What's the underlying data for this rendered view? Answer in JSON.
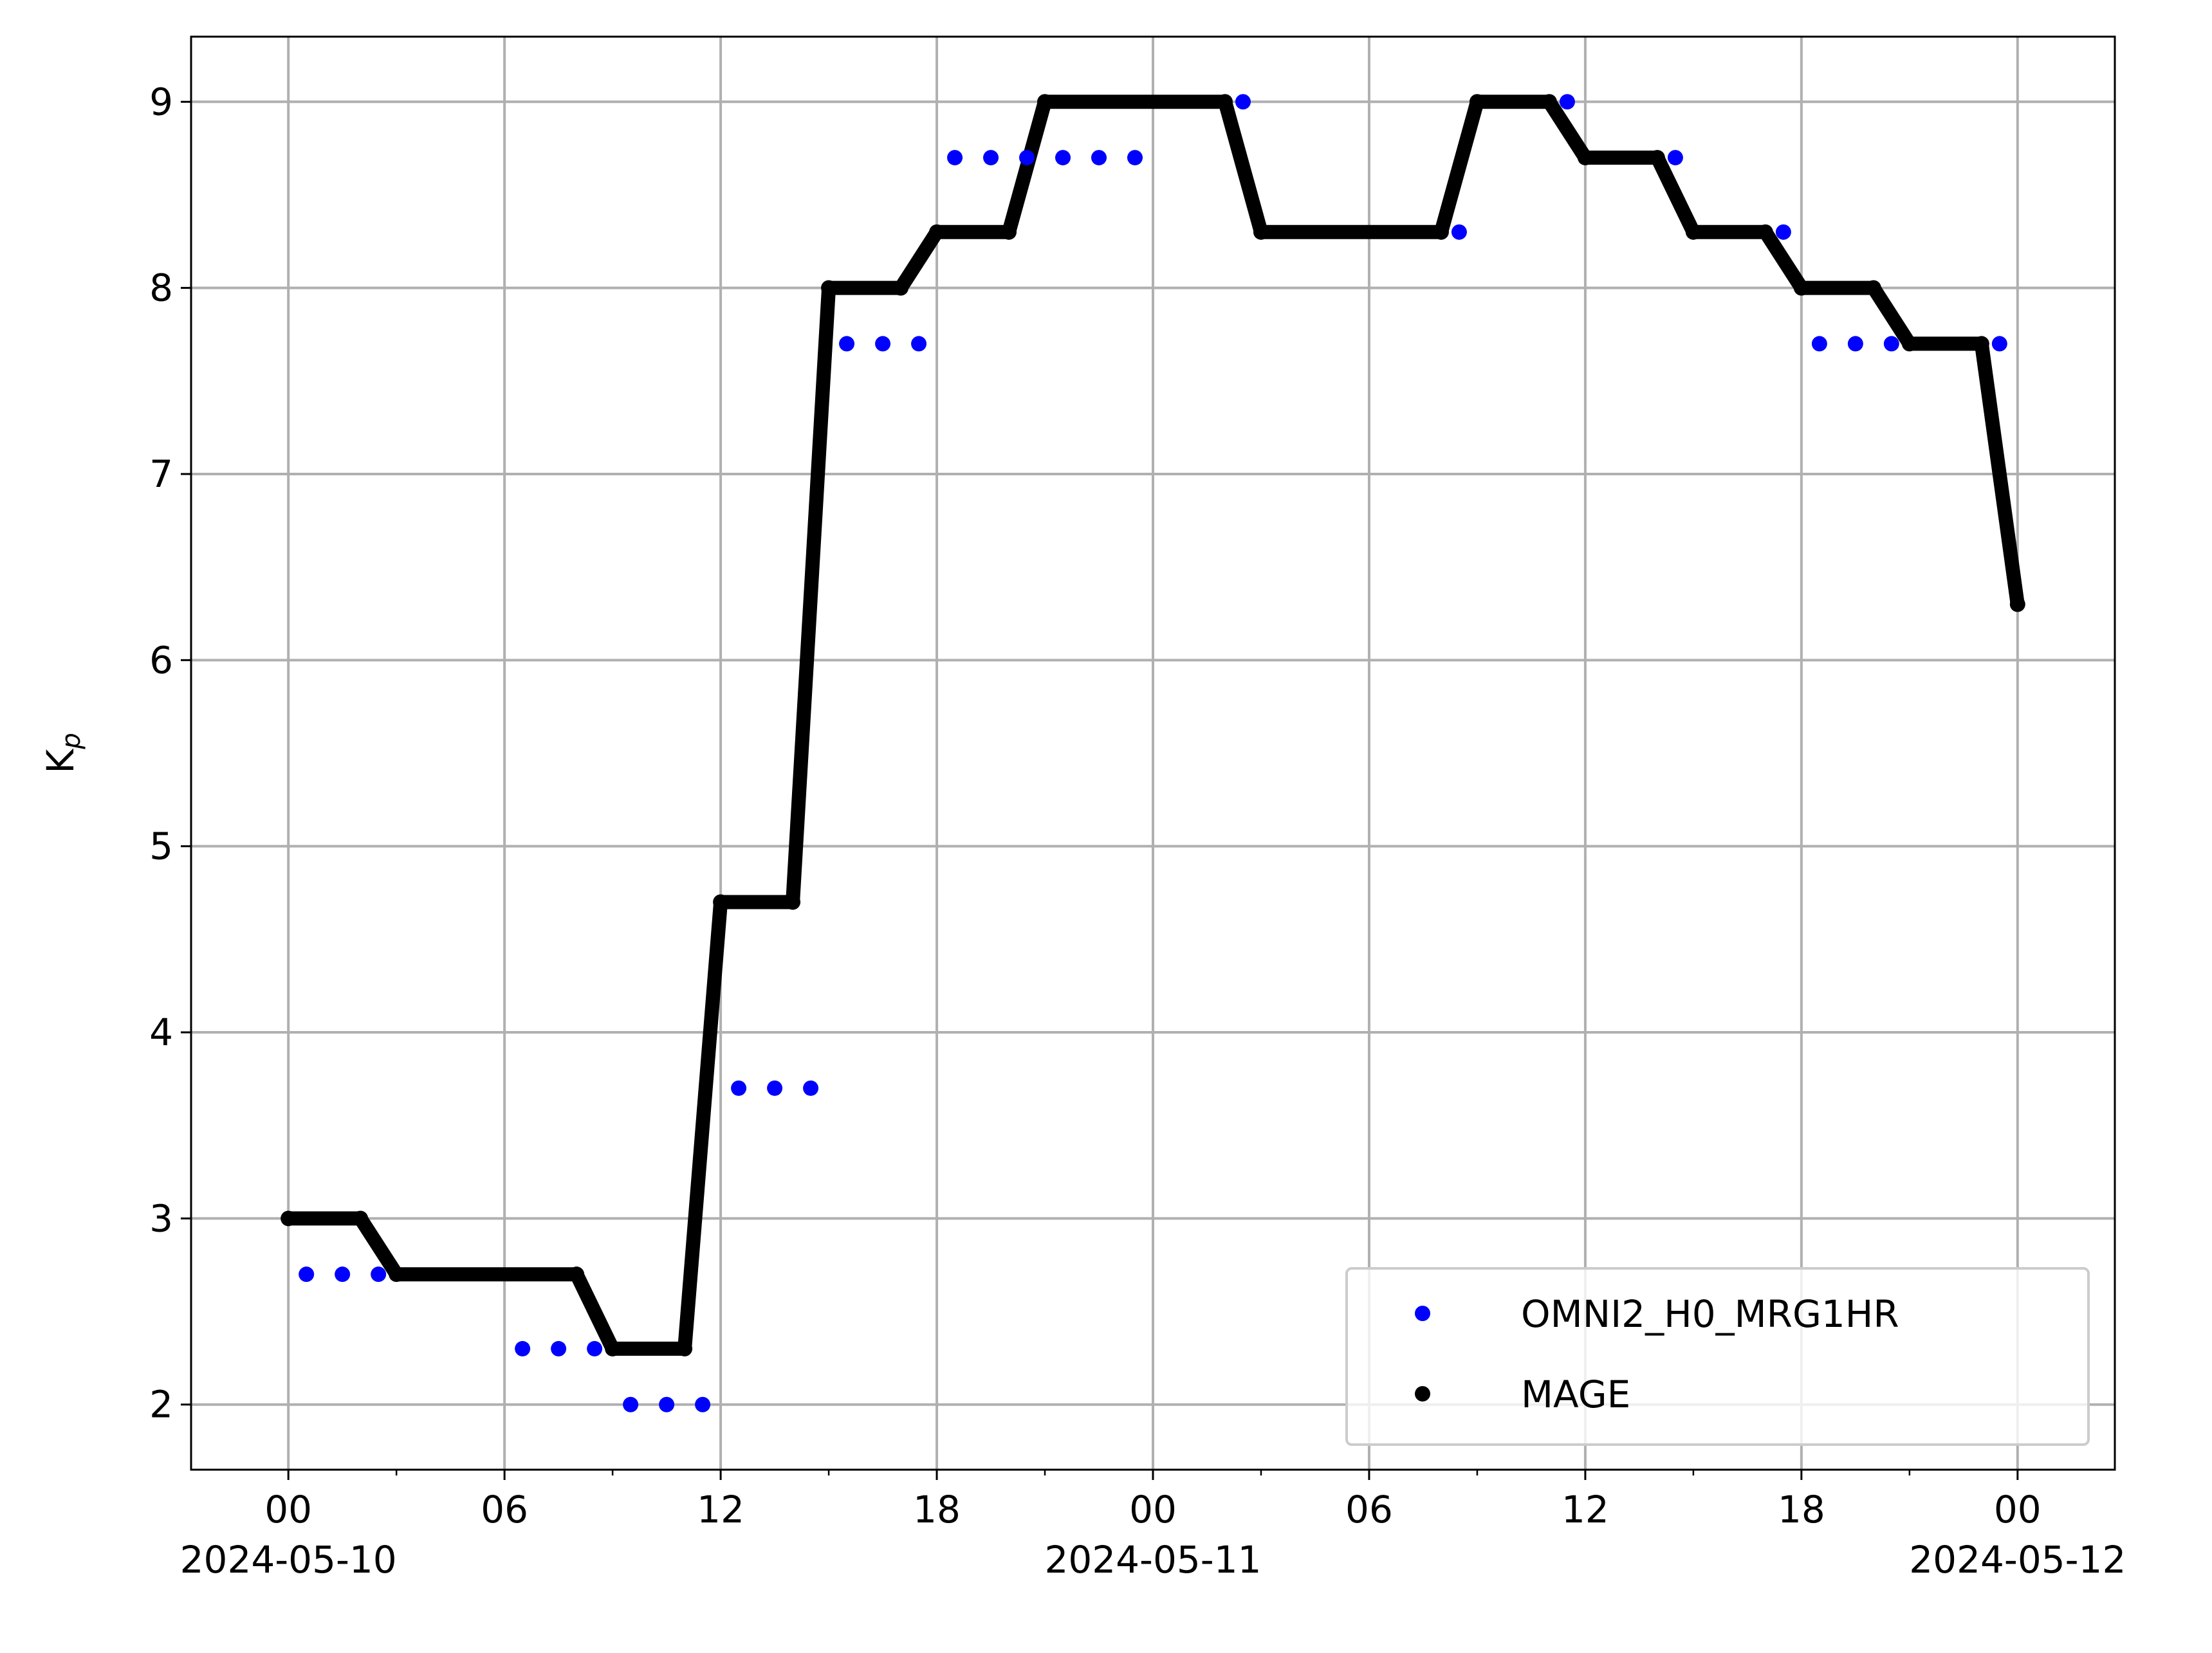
{
  "chart_data": {
    "type": "line",
    "xlabel": "",
    "ylabel": "K",
    "ylabel_subscript": "p",
    "x_range": [
      "2024-05-09T21:18",
      "2024-05-12T02:42"
    ],
    "ylim": [
      1.65,
      9.35
    ],
    "grid": true,
    "legend_position": "lower-right",
    "y_ticks": [
      2,
      3,
      4,
      5,
      6,
      7,
      8,
      9
    ],
    "x_major_ticks": [
      {
        "value": "2024-05-10T00:00",
        "line1": "00",
        "line2": "2024-05-10"
      },
      {
        "value": "2024-05-10T06:00",
        "line1": "06",
        "line2": ""
      },
      {
        "value": "2024-05-10T12:00",
        "line1": "12",
        "line2": ""
      },
      {
        "value": "2024-05-10T18:00",
        "line1": "18",
        "line2": ""
      },
      {
        "value": "2024-05-11T00:00",
        "line1": "00",
        "line2": "2024-05-11"
      },
      {
        "value": "2024-05-11T06:00",
        "line1": "06",
        "line2": ""
      },
      {
        "value": "2024-05-11T12:00",
        "line1": "12",
        "line2": ""
      },
      {
        "value": "2024-05-11T18:00",
        "line1": "18",
        "line2": ""
      },
      {
        "value": "2024-05-12T00:00",
        "line1": "00",
        "line2": "2024-05-12"
      }
    ],
    "x_minor_ticks": [
      "2024-05-10T03:00",
      "2024-05-10T09:00",
      "2024-05-10T15:00",
      "2024-05-10T21:00",
      "2024-05-11T03:00",
      "2024-05-11T09:00",
      "2024-05-11T15:00",
      "2024-05-11T21:00"
    ],
    "series": [
      {
        "name": "OMNI2_H0_MRG1HR",
        "style": "markers",
        "color": "#0000ff",
        "x": [
          "2024-05-10T00:30",
          "2024-05-10T01:30",
          "2024-05-10T02:30",
          "2024-05-10T06:30",
          "2024-05-10T07:30",
          "2024-05-10T08:30",
          "2024-05-10T09:30",
          "2024-05-10T10:30",
          "2024-05-10T11:30",
          "2024-05-10T12:30",
          "2024-05-10T13:30",
          "2024-05-10T14:30",
          "2024-05-10T15:30",
          "2024-05-10T16:30",
          "2024-05-10T17:30",
          "2024-05-10T18:30",
          "2024-05-10T19:30",
          "2024-05-10T20:30",
          "2024-05-10T21:30",
          "2024-05-10T22:30",
          "2024-05-10T23:30",
          "2024-05-11T02:30",
          "2024-05-11T08:30",
          "2024-05-11T11:30",
          "2024-05-11T14:30",
          "2024-05-11T17:30",
          "2024-05-11T18:30",
          "2024-05-11T19:30",
          "2024-05-11T20:30",
          "2024-05-11T23:30"
        ],
        "y": [
          2.7,
          2.7,
          2.7,
          2.3,
          2.3,
          2.3,
          2.0,
          2.0,
          2.0,
          3.7,
          3.7,
          3.7,
          7.7,
          7.7,
          7.7,
          8.7,
          8.7,
          8.7,
          8.7,
          8.7,
          8.7,
          9.0,
          8.3,
          9.0,
          8.7,
          8.3,
          7.7,
          7.7,
          7.7,
          7.7
        ]
      },
      {
        "name": "MAGE",
        "style": "line",
        "color": "#000000",
        "x": [
          "2024-05-10T00:00",
          "2024-05-10T02:00",
          "2024-05-10T03:00",
          "2024-05-10T08:00",
          "2024-05-10T09:00",
          "2024-05-10T11:00",
          "2024-05-10T12:00",
          "2024-05-10T14:00",
          "2024-05-10T15:00",
          "2024-05-10T17:00",
          "2024-05-10T18:00",
          "2024-05-10T20:00",
          "2024-05-10T21:00",
          "2024-05-11T02:00",
          "2024-05-11T03:00",
          "2024-05-11T08:00",
          "2024-05-11T09:00",
          "2024-05-11T11:00",
          "2024-05-11T12:00",
          "2024-05-11T14:00",
          "2024-05-11T15:00",
          "2024-05-11T17:00",
          "2024-05-11T18:00",
          "2024-05-11T20:00",
          "2024-05-11T21:00",
          "2024-05-11T23:00",
          "2024-05-12T00:00"
        ],
        "y": [
          3.0,
          3.0,
          2.7,
          2.7,
          2.3,
          2.3,
          4.7,
          4.7,
          8.0,
          8.0,
          8.3,
          8.3,
          9.0,
          9.0,
          8.3,
          8.3,
          9.0,
          9.0,
          8.7,
          8.7,
          8.3,
          8.3,
          8.0,
          8.0,
          7.7,
          7.7,
          6.3
        ]
      }
    ]
  }
}
